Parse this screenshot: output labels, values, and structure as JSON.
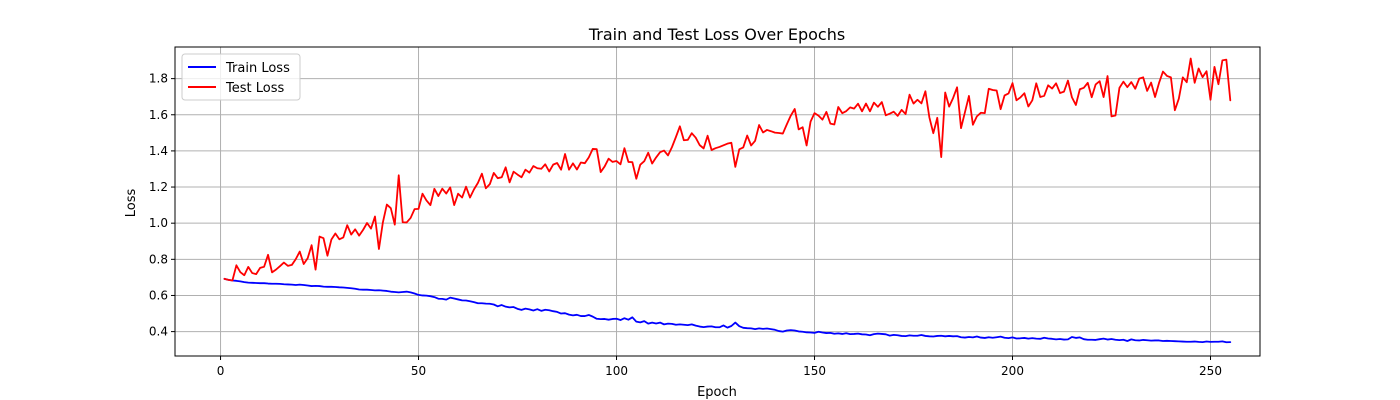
{
  "chart_data": {
    "type": "line",
    "title": "Train and Test Loss Over Epochs",
    "xlabel": "Epoch",
    "ylabel": "Loss",
    "xlim": [
      -11.5,
      262.5
    ],
    "ylim": [
      0.265,
      1.975
    ],
    "xticks": [
      0,
      50,
      100,
      150,
      200,
      250
    ],
    "yticks": [
      0.4,
      0.6,
      0.8,
      1.0,
      1.2,
      1.4,
      1.6,
      1.8
    ],
    "ytick_format": 1,
    "grid": true,
    "legend_position": "top-left",
    "series": [
      {
        "name": "Train Loss",
        "color": "#0000ff",
        "x_start": 1,
        "values": [
          0.692,
          0.686,
          0.683,
          0.681,
          0.678,
          0.674,
          0.671,
          0.67,
          0.669,
          0.668,
          0.668,
          0.666,
          0.665,
          0.665,
          0.664,
          0.662,
          0.661,
          0.66,
          0.658,
          0.66,
          0.658,
          0.655,
          0.652,
          0.653,
          0.652,
          0.649,
          0.648,
          0.648,
          0.647,
          0.645,
          0.644,
          0.642,
          0.64,
          0.637,
          0.633,
          0.632,
          0.632,
          0.63,
          0.628,
          0.629,
          0.627,
          0.625,
          0.621,
          0.619,
          0.617,
          0.619,
          0.621,
          0.617,
          0.611,
          0.603,
          0.6,
          0.599,
          0.596,
          0.591,
          0.582,
          0.581,
          0.577,
          0.588,
          0.583,
          0.578,
          0.573,
          0.572,
          0.568,
          0.563,
          0.557,
          0.557,
          0.555,
          0.554,
          0.55,
          0.54,
          0.547,
          0.538,
          0.534,
          0.536,
          0.526,
          0.52,
          0.527,
          0.523,
          0.517,
          0.524,
          0.515,
          0.521,
          0.518,
          0.513,
          0.509,
          0.5,
          0.502,
          0.494,
          0.49,
          0.493,
          0.486,
          0.486,
          0.492,
          0.483,
          0.471,
          0.469,
          0.47,
          0.466,
          0.47,
          0.471,
          0.464,
          0.474,
          0.466,
          0.479,
          0.455,
          0.451,
          0.458,
          0.444,
          0.45,
          0.445,
          0.45,
          0.44,
          0.444,
          0.443,
          0.438,
          0.44,
          0.438,
          0.436,
          0.44,
          0.433,
          0.428,
          0.425,
          0.428,
          0.429,
          0.424,
          0.424,
          0.434,
          0.422,
          0.431,
          0.45,
          0.43,
          0.421,
          0.419,
          0.418,
          0.414,
          0.418,
          0.415,
          0.417,
          0.414,
          0.41,
          0.403,
          0.4,
          0.406,
          0.408,
          0.406,
          0.401,
          0.399,
          0.396,
          0.395,
          0.393,
          0.399,
          0.395,
          0.392,
          0.393,
          0.388,
          0.39,
          0.387,
          0.391,
          0.386,
          0.387,
          0.389,
          0.385,
          0.384,
          0.38,
          0.386,
          0.389,
          0.387,
          0.385,
          0.378,
          0.382,
          0.38,
          0.376,
          0.375,
          0.379,
          0.377,
          0.377,
          0.381,
          0.376,
          0.374,
          0.373,
          0.376,
          0.377,
          0.374,
          0.376,
          0.374,
          0.375,
          0.369,
          0.367,
          0.37,
          0.368,
          0.373,
          0.367,
          0.365,
          0.369,
          0.366,
          0.369,
          0.372,
          0.366,
          0.364,
          0.368,
          0.362,
          0.363,
          0.365,
          0.361,
          0.364,
          0.361,
          0.36,
          0.366,
          0.362,
          0.36,
          0.357,
          0.359,
          0.356,
          0.357,
          0.37,
          0.365,
          0.368,
          0.358,
          0.355,
          0.355,
          0.354,
          0.358,
          0.361,
          0.356,
          0.359,
          0.355,
          0.353,
          0.355,
          0.348,
          0.357,
          0.352,
          0.351,
          0.354,
          0.352,
          0.35,
          0.351,
          0.351,
          0.348,
          0.349,
          0.348,
          0.347,
          0.346,
          0.345,
          0.344,
          0.344,
          0.345,
          0.343,
          0.342,
          0.345,
          0.343,
          0.344,
          0.344,
          0.346,
          0.341,
          0.342
        ]
      },
      {
        "name": "Test Loss",
        "color": "#ff0000",
        "x_start": 1,
        "values": [
          0.692,
          0.686,
          0.683,
          0.767,
          0.729,
          0.712,
          0.758,
          0.724,
          0.718,
          0.753,
          0.759,
          0.825,
          0.728,
          0.743,
          0.762,
          0.782,
          0.764,
          0.769,
          0.801,
          0.843,
          0.774,
          0.806,
          0.878,
          0.743,
          0.926,
          0.917,
          0.82,
          0.91,
          0.943,
          0.911,
          0.921,
          0.989,
          0.937,
          0.966,
          0.931,
          0.963,
          1.001,
          0.97,
          1.037,
          0.857,
          1.005,
          1.103,
          1.083,
          0.992,
          1.265,
          1.005,
          1.004,
          1.029,
          1.078,
          1.079,
          1.163,
          1.126,
          1.1,
          1.19,
          1.15,
          1.191,
          1.164,
          1.198,
          1.1,
          1.163,
          1.142,
          1.202,
          1.142,
          1.187,
          1.223,
          1.274,
          1.193,
          1.216,
          1.278,
          1.249,
          1.254,
          1.309,
          1.226,
          1.285,
          1.269,
          1.254,
          1.296,
          1.28,
          1.316,
          1.304,
          1.301,
          1.326,
          1.286,
          1.324,
          1.333,
          1.296,
          1.383,
          1.296,
          1.331,
          1.297,
          1.336,
          1.332,
          1.364,
          1.411,
          1.41,
          1.283,
          1.314,
          1.357,
          1.339,
          1.344,
          1.326,
          1.415,
          1.339,
          1.338,
          1.246,
          1.324,
          1.343,
          1.39,
          1.33,
          1.364,
          1.393,
          1.402,
          1.375,
          1.421,
          1.477,
          1.536,
          1.459,
          1.461,
          1.498,
          1.473,
          1.432,
          1.414,
          1.484,
          1.405,
          1.415,
          1.422,
          1.431,
          1.44,
          1.445,
          1.312,
          1.409,
          1.419,
          1.485,
          1.43,
          1.456,
          1.543,
          1.502,
          1.516,
          1.509,
          1.501,
          1.499,
          1.496,
          1.547,
          1.595,
          1.632,
          1.519,
          1.531,
          1.43,
          1.562,
          1.609,
          1.595,
          1.573,
          1.616,
          1.551,
          1.546,
          1.643,
          1.609,
          1.62,
          1.641,
          1.634,
          1.661,
          1.619,
          1.662,
          1.619,
          1.667,
          1.644,
          1.67,
          1.597,
          1.606,
          1.617,
          1.594,
          1.627,
          1.604,
          1.711,
          1.662,
          1.683,
          1.663,
          1.73,
          1.586,
          1.498,
          1.583,
          1.366,
          1.723,
          1.645,
          1.693,
          1.752,
          1.526,
          1.615,
          1.704,
          1.545,
          1.591,
          1.611,
          1.609,
          1.744,
          1.737,
          1.734,
          1.631,
          1.707,
          1.718,
          1.775,
          1.68,
          1.696,
          1.719,
          1.646,
          1.68,
          1.774,
          1.698,
          1.705,
          1.763,
          1.745,
          1.774,
          1.72,
          1.728,
          1.789,
          1.697,
          1.654,
          1.741,
          1.749,
          1.777,
          1.697,
          1.768,
          1.786,
          1.698,
          1.814,
          1.591,
          1.596,
          1.749,
          1.783,
          1.753,
          1.781,
          1.744,
          1.8,
          1.807,
          1.732,
          1.778,
          1.698,
          1.776,
          1.839,
          1.815,
          1.807,
          1.625,
          1.689,
          1.807,
          1.78,
          1.911,
          1.777,
          1.856,
          1.808,
          1.841,
          1.683,
          1.865,
          1.769,
          1.901,
          1.905,
          1.68
        ]
      }
    ]
  }
}
